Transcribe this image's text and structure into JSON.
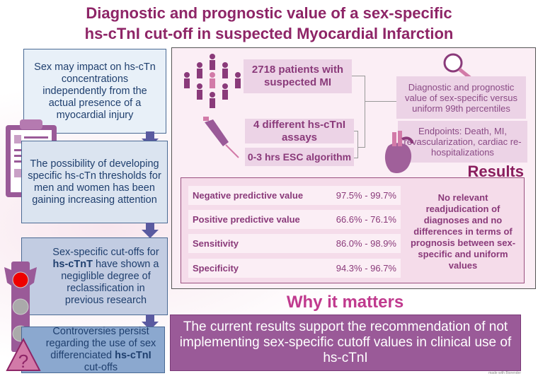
{
  "title": {
    "line1": "Diagnostic and prognostic value of a sex-specific",
    "line2": "hs-cTnI cut-off in suspected Myocardial Infarction"
  },
  "left_flow": [
    {
      "text": "Sex may impact on  hs-cTn concentrations independently from the actual presence of a myocardial injury"
    },
    {
      "text": "The possibility of developing specific hs-cTn thresholds for men and women has been gaining increasing attention"
    },
    {
      "pre": "Sex-specific cut-offs for ",
      "bold": "hs-cTnT",
      "post": " have shown a negiglible degree of reclassification in previous research"
    },
    {
      "pre": "Controversies persist regarding the use of sex differenciated ",
      "bold": "hs-cTnI",
      "post": " cut-offs"
    }
  ],
  "methods": {
    "patients": "2718 patients with suspected MI",
    "assays": "4 different hs-cTnI assays",
    "algorithm": "0-3 hrs ESC algorithm",
    "aim": "Diagnostic and prognostic value of sex-specific versus uniform 99th percentiles",
    "endpoints": "Endpoints: Death, MI, revascularization, cardiac re-hospitalizations"
  },
  "results": {
    "heading": "Results",
    "rows": [
      {
        "label": "Negative predictive value",
        "value": "97.5% - 99.7%"
      },
      {
        "label": "Positive predictive value",
        "value": "66.6% - 76.1%"
      },
      {
        "label": "Sensitivity",
        "value": "86.0% - 98.9%"
      },
      {
        "label": "Specificity",
        "value": "94.3% - 96.7%"
      }
    ],
    "summary": "No relevant readjudication of diagnoses and no differences in terms of prognosis between sex-specific and uniform values"
  },
  "why": {
    "heading": "Why it matters",
    "text": "The current results  support the recommendation of not implementing sex-specific cutoff values in clinical use of hs-cTnI"
  },
  "credit": "made with Biorender",
  "icons": {
    "warning": "?"
  }
}
